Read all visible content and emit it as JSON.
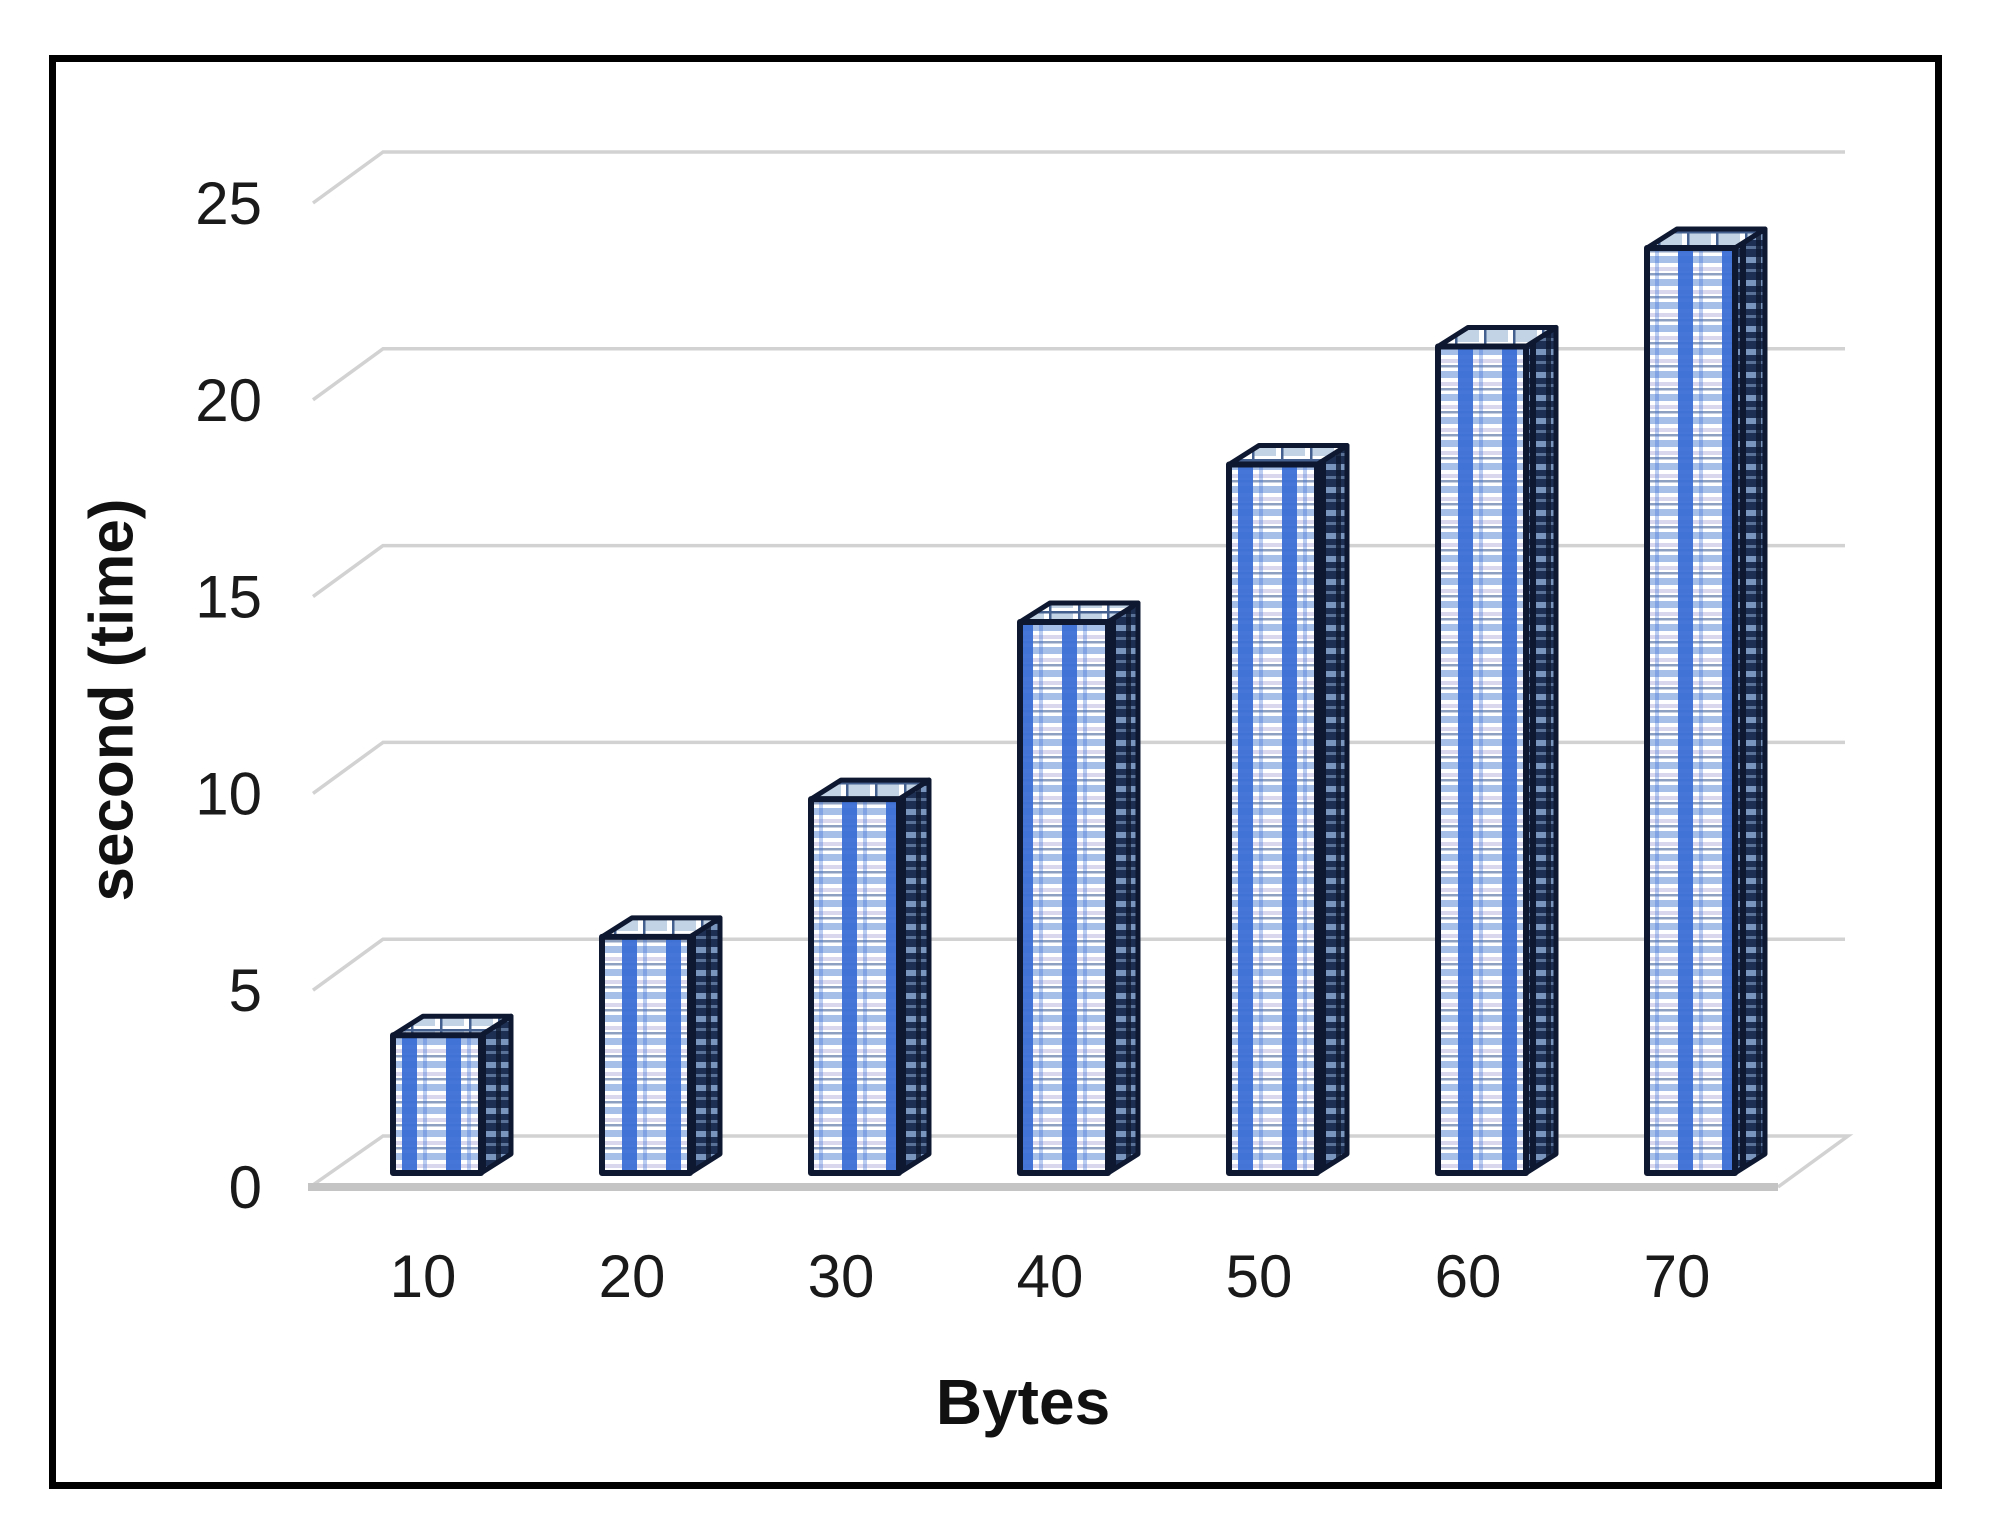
{
  "figure": {
    "background": "#ffffff",
    "frame_border_color": "#000000"
  },
  "chart_data": {
    "type": "bar",
    "style": "3d-column",
    "title": "",
    "xlabel": "Bytes",
    "ylabel": "second (time)",
    "categories": [
      "10",
      "20",
      "30",
      "40",
      "50",
      "60",
      "70"
    ],
    "values": [
      3.5,
      6,
      9.5,
      14,
      18,
      21,
      23.5
    ],
    "yticks": [
      0,
      5,
      10,
      15,
      20,
      25
    ],
    "ylim": [
      0,
      25
    ],
    "grid": true,
    "legend": false,
    "colors": {
      "bar_vertical_stripe": "#3c6ed5",
      "bar_horizontal_stripe": "#a6bfe9",
      "bar_pale_stripe": "#d8d7ee",
      "bar_thin_navy": "#30518f",
      "bar_face_bg": "#ffffff",
      "bar_outline": "#0e1830",
      "bar_side_bg": "#1d2f52",
      "bar_side_light": "#8aa7d0",
      "bar_top_bg": "#c3d3e6",
      "bar_top_line": "#44608f",
      "gridline": "#d2d2d2",
      "floor_front": "#c4c4c4",
      "text": "#1a1a1a"
    }
  }
}
